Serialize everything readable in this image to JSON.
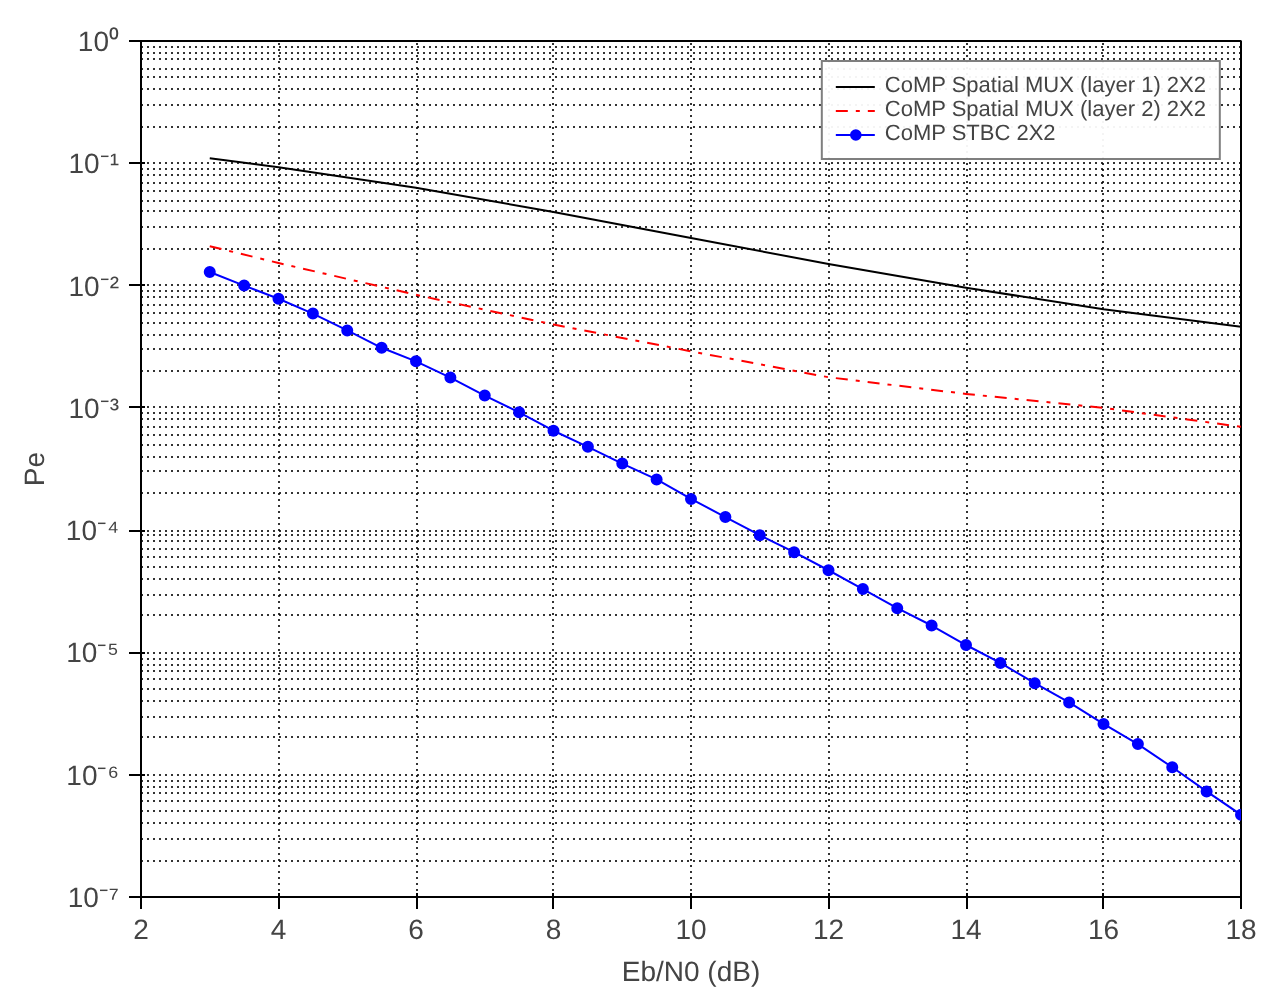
{
  "chart_data": {
    "type": "line",
    "xlabel": "Eb/N0 (dB)",
    "ylabel": "Pe",
    "log": "y",
    "grid": true,
    "legend": "top right",
    "xlim": [
      2,
      18
    ],
    "xticks": [
      2,
      4,
      6,
      8,
      10,
      12,
      14,
      16,
      18
    ],
    "ylim": [
      1e-07,
      1
    ],
    "yticks": [
      {
        "value": 1e-07,
        "label": "10⁻⁷"
      },
      {
        "value": 1e-06,
        "label": "10⁻⁶"
      },
      {
        "value": 1e-05,
        "label": "10⁻⁵"
      },
      {
        "value": 0.0001,
        "label": "10⁻⁴"
      },
      {
        "value": 0.001,
        "label": "10⁻³"
      },
      {
        "value": 0.01,
        "label": "10⁻²"
      },
      {
        "value": 0.1,
        "label": "10⁻¹"
      },
      {
        "value": 1,
        "label": "10⁰"
      }
    ],
    "series": [
      {
        "name": "CoMP Spatial MUX (layer 1) 2X2",
        "color": "#000000",
        "line_style": "solid",
        "marker": "none",
        "x": [
          3,
          4,
          6,
          8,
          10,
          12,
          14,
          16,
          18
        ],
        "values": [
          0.11,
          0.093,
          0.063,
          0.04,
          0.0245,
          0.015,
          0.0096,
          0.0064,
          0.0046
        ]
      },
      {
        "name": "CoMP Spatial MUX (layer 2) 2X2",
        "color": "#ff0000",
        "line_style": "dashdot",
        "marker": "none",
        "x": [
          3,
          4,
          6,
          8,
          10,
          12,
          14,
          16,
          18
        ],
        "values": [
          0.021,
          0.0153,
          0.0084,
          0.0048,
          0.0029,
          0.00178,
          0.0013,
          0.001,
          0.0007
        ]
      },
      {
        "name": "CoMP STBC 2X2",
        "color": "#0000ff",
        "line_style": "solid",
        "marker": "circle",
        "x": [
          3,
          3.5,
          4,
          4.5,
          5,
          5.5,
          6,
          6.5,
          7,
          7.5,
          8,
          8.5,
          9,
          9.5,
          10,
          10.5,
          11,
          11.5,
          12,
          12.5,
          13,
          13.5,
          14,
          14.5,
          15,
          15.5,
          16,
          16.5,
          17,
          17.5,
          18
        ],
        "values": [
          0.0129,
          0.01,
          0.0078,
          0.0059,
          0.0043,
          0.0031,
          0.0024,
          0.00177,
          0.00126,
          0.00092,
          0.00065,
          0.00048,
          0.00035,
          0.00026,
          0.00018,
          0.000128,
          9.1e-05,
          6.6e-05,
          4.7e-05,
          3.3e-05,
          2.3e-05,
          1.66e-05,
          1.15e-05,
          8.2e-06,
          5.6e-06,
          3.9e-06,
          2.6e-06,
          1.78e-06,
          1.15e-06,
          7.3e-07,
          4.7e-07
        ]
      }
    ]
  }
}
